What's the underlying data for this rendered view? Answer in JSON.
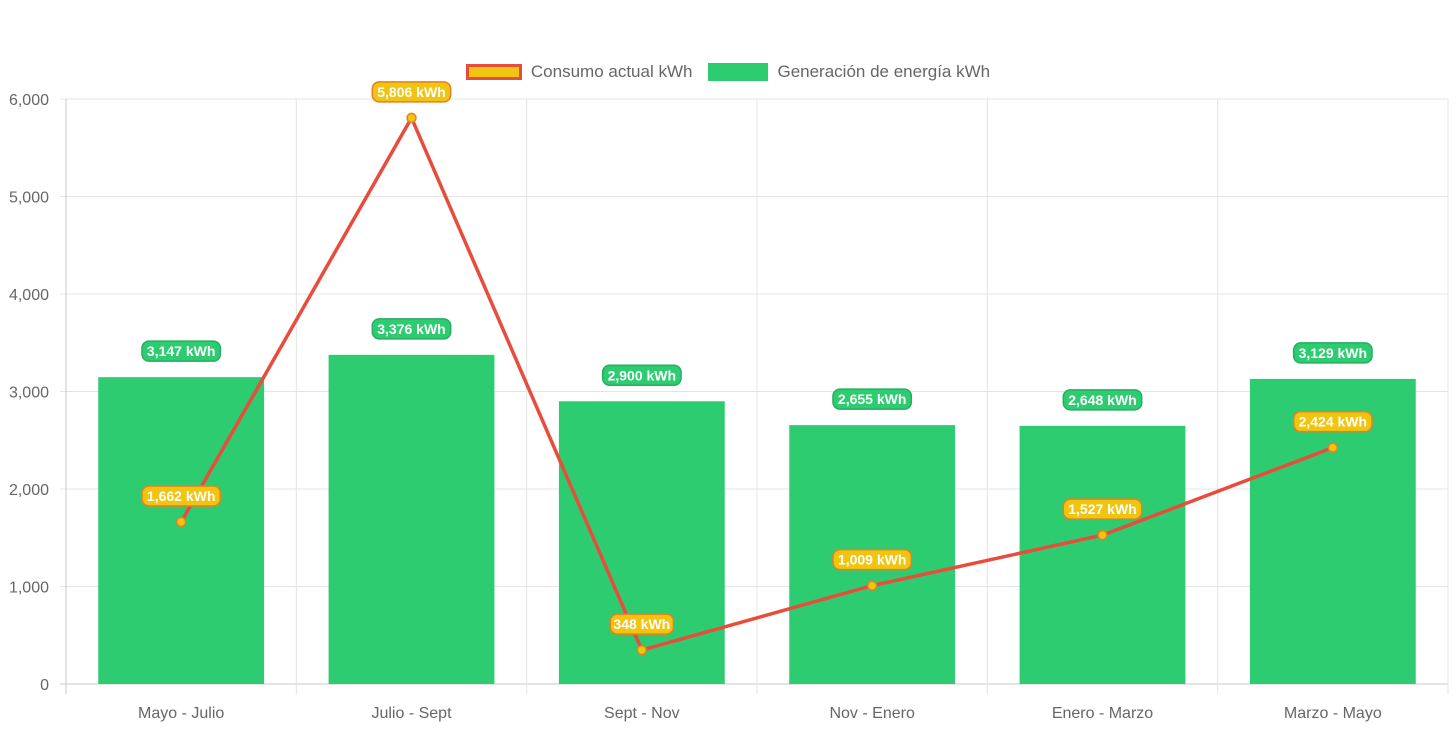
{
  "chart_data": {
    "type": "bar",
    "categories": [
      "Mayo - Julio",
      "Julio - Sept",
      "Sept - Nov",
      "Nov - Enero",
      "Enero - Marzo",
      "Marzo - Mayo"
    ],
    "series": [
      {
        "name": "Generación de energía kWh",
        "type": "bar",
        "color": "#2ecc71",
        "values": [
          3147,
          3376,
          2900,
          2655,
          2648,
          3129
        ],
        "labels": [
          "3,147 kWh",
          "3,376 kWh",
          "2,900 kWh",
          "2,655 kWh",
          "2,648 kWh",
          "3,129 kWh"
        ]
      },
      {
        "name": "Consumo actual kWh",
        "type": "line",
        "color": "#e74c3c",
        "point_color": "#f1c40f",
        "values": [
          1662,
          5806,
          348,
          1009,
          1527,
          2424
        ],
        "labels": [
          "1,662 kWh",
          "5,806 kWh",
          "348 kWh",
          "1,009 kWh",
          "1,527 kWh",
          "2,424 kWh"
        ]
      }
    ],
    "ylim": [
      0,
      6000
    ],
    "yticks": [
      0,
      1000,
      2000,
      3000,
      4000,
      5000,
      6000
    ],
    "ytick_labels": [
      "0",
      "1,000",
      "2,000",
      "3,000",
      "4,000",
      "5,000",
      "6,000"
    ],
    "grid": true,
    "legend_position": "top-center",
    "legend": [
      {
        "label": "Consumo actual kWh",
        "swatch": "line"
      },
      {
        "label": "Generación de energía kWh",
        "swatch": "bar"
      }
    ]
  }
}
